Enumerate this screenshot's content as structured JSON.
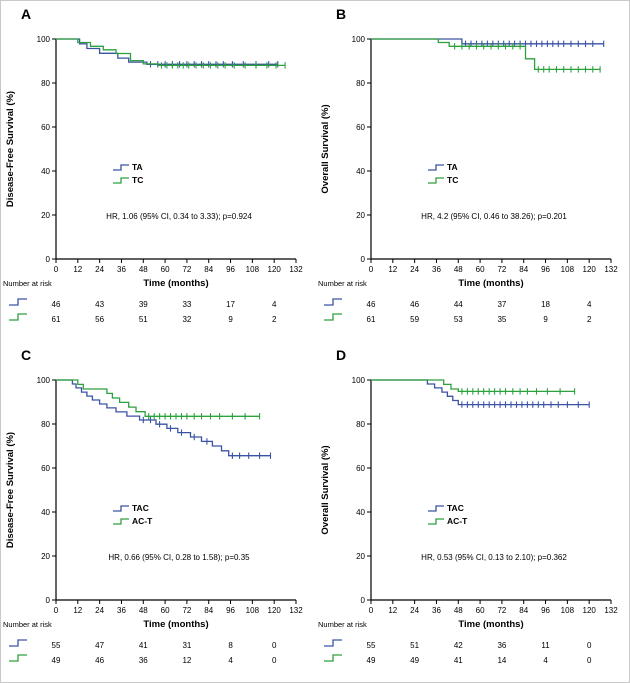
{
  "chart_data": {
    "type": "line",
    "subtype": "kaplan-meier-step",
    "background": "#ffffff",
    "axis_color": "#000000",
    "xlabel": "Time (months)",
    "number_at_risk_label": "Number at risk",
    "x_ticks": [
      0,
      12,
      24,
      36,
      48,
      60,
      72,
      84,
      96,
      108,
      120,
      132
    ],
    "y_ticks": [
      0,
      20,
      40,
      60,
      80,
      100
    ],
    "xlim": [
      0,
      132
    ],
    "ylim": [
      0,
      100
    ],
    "risk_months": [
      0,
      24,
      48,
      72,
      96,
      120
    ],
    "colors": {
      "blue": "#3a53a4",
      "green": "#2ca13c"
    },
    "panels": [
      {
        "label": "A",
        "ylabel": "Disease-Free Survival (%)",
        "hr_text": "HR, 1.06 (95% CI, 0.34 to 3.33); p=0.924",
        "series": [
          {
            "name": "TA",
            "color": "#3a53a4",
            "steps": [
              [
                0,
                100
              ],
              [
                13,
                97.8
              ],
              [
                17,
                95.7
              ],
              [
                24,
                93.5
              ],
              [
                34,
                91.3
              ],
              [
                40,
                89.5
              ],
              [
                50,
                88.5
              ]
            ],
            "end": 122,
            "censors": [
              52,
              56,
              60,
              64,
              68,
              72,
              76,
              80,
              84,
              88,
              92,
              97,
              103,
              110,
              117,
              122
            ],
            "risk": [
              46,
              43,
              39,
              33,
              17,
              4
            ]
          },
          {
            "name": "TC",
            "color": "#2ca13c",
            "steps": [
              [
                0,
                100
              ],
              [
                12,
                98.4
              ],
              [
                19,
                96.7
              ],
              [
                26,
                95.1
              ],
              [
                33,
                93.4
              ],
              [
                41,
                90.2
              ],
              [
                48,
                88.7
              ],
              [
                56,
                88.0
              ]
            ],
            "end": 126,
            "censors": [
              58,
              61,
              64,
              67,
              70,
              73,
              77,
              81,
              85,
              89,
              93,
              98,
              104,
              110,
              116,
              121,
              126
            ],
            "risk": [
              61,
              56,
              51,
              32,
              9,
              2
            ]
          }
        ]
      },
      {
        "label": "B",
        "ylabel": "Overall Survival (%)",
        "hr_text": "HR, 4.2 (95% CI, 0.46 to 38.26); p=0.201",
        "series": [
          {
            "name": "TA",
            "color": "#3a53a4",
            "steps": [
              [
                0,
                100
              ],
              [
                50,
                97.8
              ]
            ],
            "end": 128,
            "censors": [
              52,
              55,
              58,
              61,
              64,
              67,
              70,
              73,
              76,
              79,
              82,
              85,
              88,
              91,
              94,
              97,
              100,
              103,
              106,
              110,
              114,
              118,
              122,
              128
            ],
            "risk": [
              46,
              46,
              44,
              37,
              18,
              4
            ]
          },
          {
            "name": "TC",
            "color": "#2ca13c",
            "steps": [
              [
                0,
                100
              ],
              [
                37,
                98.4
              ],
              [
                43,
                96.7
              ],
              [
                85,
                91.0
              ],
              [
                90,
                86.2
              ]
            ],
            "end": 126,
            "censors": [
              46,
              50,
              54,
              58,
              62,
              66,
              70,
              74,
              78,
              82,
              92,
              95,
              98,
              102,
              106,
              110,
              114,
              118,
              122,
              126
            ],
            "risk": [
              61,
              59,
              53,
              35,
              9,
              2
            ]
          }
        ]
      },
      {
        "label": "C",
        "ylabel": "Disease-Free Survival (%)",
        "hr_text": "HR, 0.66 (95% CI, 0.28 to 1.58); p=0.35",
        "series": [
          {
            "name": "TAC",
            "color": "#3a53a4",
            "steps": [
              [
                0,
                100
              ],
              [
                9,
                98.2
              ],
              [
                11,
                96.4
              ],
              [
                14,
                94.5
              ],
              [
                17,
                92.7
              ],
              [
                20,
                90.9
              ],
              [
                24,
                89.1
              ],
              [
                28,
                87.3
              ],
              [
                33,
                85.5
              ],
              [
                39,
                83.6
              ],
              [
                46,
                81.8
              ],
              [
                55,
                79.9
              ],
              [
                61,
                78.0
              ],
              [
                67,
                76.1
              ],
              [
                74,
                74.1
              ],
              [
                80,
                72.1
              ],
              [
                86,
                70.0
              ],
              [
                91,
                67.8
              ],
              [
                95,
                65.6
              ]
            ],
            "end": 118,
            "censors": [
              48,
              52,
              57,
              63,
              69,
              76,
              83,
              97,
              101,
              106,
              112,
              118
            ],
            "risk": [
              55,
              47,
              41,
              31,
              8,
              0
            ]
          },
          {
            "name": "AC-T",
            "color": "#2ca13c",
            "steps": [
              [
                0,
                100
              ],
              [
                12,
                98.0
              ],
              [
                15,
                95.9
              ],
              [
                28,
                93.9
              ],
              [
                31,
                91.8
              ],
              [
                35,
                89.8
              ],
              [
                40,
                87.7
              ],
              [
                44,
                85.6
              ],
              [
                49,
                83.5
              ]
            ],
            "end": 112,
            "censors": [
              51,
              54,
              57,
              60,
              63,
              66,
              69,
              72,
              76,
              80,
              85,
              90,
              97,
              104,
              112
            ],
            "risk": [
              49,
              46,
              36,
              12,
              4,
              0
            ]
          }
        ]
      },
      {
        "label": "D",
        "ylabel": "Overall Survival (%)",
        "hr_text": "HR, 0.53 (95% CI, 0.13 to 2.10); p=0.362",
        "series": [
          {
            "name": "TAC",
            "color": "#3a53a4",
            "steps": [
              [
                0,
                100
              ],
              [
                31,
                98.2
              ],
              [
                35,
                96.4
              ],
              [
                39,
                94.5
              ],
              [
                42,
                92.6
              ],
              [
                45,
                90.7
              ],
              [
                48,
                88.8
              ]
            ],
            "end": 120,
            "censors": [
              50,
              53,
              56,
              59,
              62,
              65,
              68,
              71,
              74,
              77,
              80,
              83,
              86,
              89,
              92,
              95,
              99,
              103,
              108,
              114,
              120
            ],
            "risk": [
              55,
              51,
              42,
              36,
              11,
              0
            ]
          },
          {
            "name": "AC-T",
            "color": "#2ca13c",
            "steps": [
              [
                0,
                100
              ],
              [
                40,
                98.0
              ],
              [
                44,
                95.9
              ],
              [
                48,
                94.8
              ]
            ],
            "end": 112,
            "censors": [
              50,
              53,
              56,
              59,
              62,
              65,
              68,
              71,
              74,
              78,
              82,
              86,
              91,
              97,
              104,
              112
            ],
            "risk": [
              49,
              49,
              41,
              14,
              4,
              0
            ]
          }
        ]
      }
    ]
  }
}
